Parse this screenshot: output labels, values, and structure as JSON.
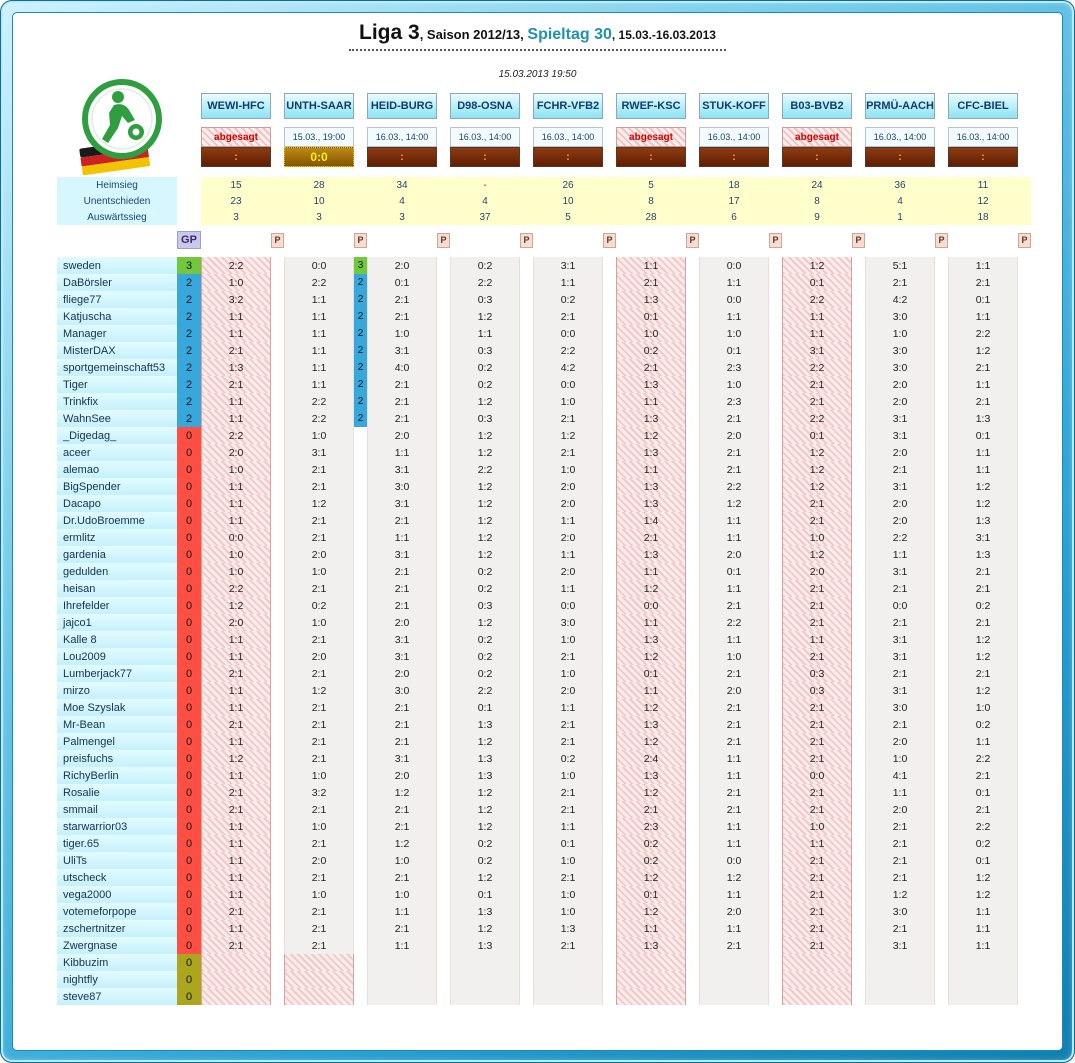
{
  "palette": {
    "accent_teal": "#2191b4",
    "cancelled_red": "#cc0000",
    "points3_green": "#72c83c",
    "points2_blue": "#38a8dc",
    "zero_red": "#ff4f42",
    "inactive_olive": "#aca51e",
    "result_pending_bg": "#7a2a08",
    "result_final_bg": "#9a6a08",
    "stats_yellow": "#ffffcc"
  },
  "header": {
    "title_league": "Liga 3",
    "title_season": ", Saison 2012/13, ",
    "title_matchday": "Spieltag 30",
    "title_dates": ", 15.03.-16.03.2013",
    "timestamp": "15.03.2013 19:50"
  },
  "labels": {
    "home_win": "Heimsieg",
    "draw": "Unentschieden",
    "away_win": "Auswärtssieg",
    "gp": "GP",
    "p": "P",
    "cancelled": "abgesagt",
    "result_pending": ":"
  },
  "matches": [
    {
      "name": "WEWI-HFC",
      "schedule": "abgesagt",
      "cancelled": true,
      "finished": false,
      "result": ":",
      "home_win": "15",
      "draw": "23",
      "away_win": "3"
    },
    {
      "name": "UNTH-SAAR",
      "schedule": "15.03., 19:00",
      "cancelled": false,
      "finished": true,
      "result": "0:0",
      "home_win": "28",
      "draw": "10",
      "away_win": "3"
    },
    {
      "name": "HEID-BURG",
      "schedule": "16.03., 14:00",
      "cancelled": false,
      "finished": false,
      "result": ":",
      "home_win": "34",
      "draw": "4",
      "away_win": "3"
    },
    {
      "name": "D98-OSNA",
      "schedule": "16.03., 14:00",
      "cancelled": false,
      "finished": false,
      "result": ":",
      "home_win": "-",
      "draw": "4",
      "away_win": "37"
    },
    {
      "name": "FCHR-VFB2",
      "schedule": "16.03., 14:00",
      "cancelled": false,
      "finished": false,
      "result": ":",
      "home_win": "26",
      "draw": "10",
      "away_win": "5"
    },
    {
      "name": "RWEF-KSC",
      "schedule": "abgesagt",
      "cancelled": true,
      "finished": false,
      "result": ":",
      "home_win": "5",
      "draw": "8",
      "away_win": "28"
    },
    {
      "name": "STUK-KOFF",
      "schedule": "16.03., 14:00",
      "cancelled": false,
      "finished": false,
      "result": ":",
      "home_win": "18",
      "draw": "17",
      "away_win": "6"
    },
    {
      "name": "B03-BVB2",
      "schedule": "abgesagt",
      "cancelled": true,
      "finished": false,
      "result": ":",
      "home_win": "24",
      "draw": "8",
      "away_win": "9"
    },
    {
      "name": "PRMÜ-AACH",
      "schedule": "16.03., 14:00",
      "cancelled": false,
      "finished": false,
      "result": ":",
      "home_win": "36",
      "draw": "4",
      "away_win": "1"
    },
    {
      "name": "CFC-BIEL",
      "schedule": "16.03., 14:00",
      "cancelled": false,
      "finished": false,
      "result": ":",
      "home_win": "11",
      "draw": "12",
      "away_win": "18"
    }
  ],
  "players": [
    {
      "name": "sweden",
      "gp": "3",
      "tips": [
        "2:2",
        "0:0",
        "2:0",
        "0:2",
        "3:1",
        "1:1",
        "0:0",
        "1:2",
        "5:1",
        "1:1"
      ],
      "points": {
        "1": "3"
      }
    },
    {
      "name": "DaBörsler",
      "gp": "2",
      "tips": [
        "1:0",
        "2:2",
        "0:1",
        "2:2",
        "1:1",
        "2:1",
        "1:1",
        "0:1",
        "2:1",
        "2:1"
      ],
      "points": {
        "1": "2"
      }
    },
    {
      "name": "fliege77",
      "gp": "2",
      "tips": [
        "3:2",
        "1:1",
        "2:1",
        "0:3",
        "0:2",
        "1:3",
        "0:0",
        "2:2",
        "4:2",
        "0:1"
      ],
      "points": {
        "1": "2"
      }
    },
    {
      "name": "Katjuscha",
      "gp": "2",
      "tips": [
        "1:1",
        "1:1",
        "2:1",
        "1:2",
        "2:1",
        "0:1",
        "1:1",
        "1:1",
        "3:0",
        "1:1"
      ],
      "points": {
        "1": "2"
      }
    },
    {
      "name": "Manager",
      "gp": "2",
      "tips": [
        "1:1",
        "1:1",
        "1:0",
        "1:1",
        "0:0",
        "1:0",
        "1:0",
        "1:1",
        "1:0",
        "2:2"
      ],
      "points": {
        "1": "2"
      }
    },
    {
      "name": "MisterDAX",
      "gp": "2",
      "tips": [
        "2:1",
        "1:1",
        "3:1",
        "0:3",
        "2:2",
        "0:2",
        "0:1",
        "3:1",
        "3:0",
        "1:2"
      ],
      "points": {
        "1": "2"
      }
    },
    {
      "name": "sportgemeinschaft53",
      "gp": "2",
      "tips": [
        "1:3",
        "1:1",
        "4:0",
        "0:2",
        "4:2",
        "2:1",
        "2:3",
        "2:2",
        "3:0",
        "2:1"
      ],
      "points": {
        "1": "2"
      }
    },
    {
      "name": "Tiger",
      "gp": "2",
      "tips": [
        "2:1",
        "1:1",
        "2:1",
        "0:2",
        "0:0",
        "1:3",
        "1:0",
        "2:1",
        "2:0",
        "1:1"
      ],
      "points": {
        "1": "2"
      }
    },
    {
      "name": "Trinkfix",
      "gp": "2",
      "tips": [
        "1:1",
        "2:2",
        "2:1",
        "1:2",
        "1:0",
        "1:1",
        "2:3",
        "2:1",
        "2:0",
        "2:1"
      ],
      "points": {
        "1": "2"
      }
    },
    {
      "name": "WahnSee",
      "gp": "2",
      "tips": [
        "1:1",
        "2:2",
        "2:1",
        "0:3",
        "2:1",
        "1:3",
        "2:1",
        "2:2",
        "3:1",
        "1:3"
      ],
      "points": {
        "1": "2"
      }
    },
    {
      "name": "_Digedag_",
      "gp": "0",
      "tips": [
        "2:2",
        "1:0",
        "2:0",
        "1:2",
        "1:2",
        "1:2",
        "2:0",
        "0:1",
        "3:1",
        "0:1"
      ],
      "points": {}
    },
    {
      "name": "aceer",
      "gp": "0",
      "tips": [
        "2:0",
        "3:1",
        "1:1",
        "1:2",
        "2:1",
        "1:3",
        "2:1",
        "1:2",
        "2:0",
        "1:1"
      ],
      "points": {}
    },
    {
      "name": "alemao",
      "gp": "0",
      "tips": [
        "1:0",
        "2:1",
        "3:1",
        "2:2",
        "1:0",
        "1:1",
        "2:1",
        "1:2",
        "2:1",
        "1:1"
      ],
      "points": {}
    },
    {
      "name": "BigSpender",
      "gp": "0",
      "tips": [
        "1:1",
        "2:1",
        "3:0",
        "1:2",
        "2:0",
        "1:3",
        "2:2",
        "1:2",
        "3:1",
        "1:2"
      ],
      "points": {}
    },
    {
      "name": "Dacapo",
      "gp": "0",
      "tips": [
        "1:1",
        "1:2",
        "3:1",
        "1:2",
        "2:0",
        "1:3",
        "1:2",
        "2:1",
        "2:0",
        "1:2"
      ],
      "points": {}
    },
    {
      "name": "Dr.UdoBroemme",
      "gp": "0",
      "tips": [
        "1:1",
        "2:1",
        "2:1",
        "1:2",
        "1:1",
        "1:4",
        "1:1",
        "2:1",
        "2:0",
        "1:3"
      ],
      "points": {}
    },
    {
      "name": "ermlitz",
      "gp": "0",
      "tips": [
        "0:0",
        "2:1",
        "1:1",
        "1:2",
        "2:0",
        "2:1",
        "1:1",
        "1:0",
        "2:2",
        "3:1"
      ],
      "points": {}
    },
    {
      "name": "gardenia",
      "gp": "0",
      "tips": [
        "1:0",
        "2:0",
        "3:1",
        "1:2",
        "1:1",
        "1:3",
        "2:0",
        "1:2",
        "1:1",
        "1:3"
      ],
      "points": {}
    },
    {
      "name": "gedulden",
      "gp": "0",
      "tips": [
        "1:0",
        "1:0",
        "2:1",
        "0:2",
        "2:0",
        "1:1",
        "0:1",
        "2:0",
        "3:1",
        "2:1"
      ],
      "points": {}
    },
    {
      "name": "heisan",
      "gp": "0",
      "tips": [
        "2:2",
        "2:1",
        "2:1",
        "0:2",
        "1:1",
        "1:2",
        "1:1",
        "2:1",
        "2:1",
        "2:1"
      ],
      "points": {}
    },
    {
      "name": "Ihrefelder",
      "gp": "0",
      "tips": [
        "1:2",
        "0:2",
        "2:1",
        "0:3",
        "0:0",
        "0:0",
        "2:1",
        "2:1",
        "0:0",
        "0:2"
      ],
      "points": {}
    },
    {
      "name": "jajco1",
      "gp": "0",
      "tips": [
        "2:0",
        "1:0",
        "2:0",
        "1:2",
        "3:0",
        "1:1",
        "2:2",
        "2:1",
        "2:1",
        "2:1"
      ],
      "points": {}
    },
    {
      "name": "Kalle 8",
      "gp": "0",
      "tips": [
        "1:1",
        "2:1",
        "3:1",
        "0:2",
        "1:0",
        "1:3",
        "1:1",
        "1:1",
        "3:1",
        "1:2"
      ],
      "points": {}
    },
    {
      "name": "Lou2009",
      "gp": "0",
      "tips": [
        "1:1",
        "2:0",
        "3:1",
        "0:2",
        "2:1",
        "1:2",
        "1:0",
        "2:1",
        "3:1",
        "1:2"
      ],
      "points": {}
    },
    {
      "name": "Lumberjack77",
      "gp": "0",
      "tips": [
        "2:1",
        "2:1",
        "2:0",
        "0:2",
        "1:0",
        "0:1",
        "2:1",
        "0:3",
        "2:1",
        "2:1"
      ],
      "points": {}
    },
    {
      "name": "mirzo",
      "gp": "0",
      "tips": [
        "1:1",
        "1:2",
        "3:0",
        "2:2",
        "2:0",
        "1:1",
        "2:0",
        "0:3",
        "3:1",
        "1:2"
      ],
      "points": {}
    },
    {
      "name": "Moe Szyslak",
      "gp": "0",
      "tips": [
        "1:1",
        "2:1",
        "2:1",
        "0:1",
        "1:1",
        "1:2",
        "2:1",
        "2:1",
        "3:0",
        "1:0"
      ],
      "points": {}
    },
    {
      "name": "Mr-Bean",
      "gp": "0",
      "tips": [
        "2:1",
        "2:1",
        "2:1",
        "1:3",
        "2:1",
        "1:3",
        "2:1",
        "2:1",
        "2:1",
        "0:2"
      ],
      "points": {}
    },
    {
      "name": "Palmengel",
      "gp": "0",
      "tips": [
        "1:1",
        "2:1",
        "2:1",
        "1:2",
        "2:1",
        "1:2",
        "2:1",
        "2:1",
        "2:0",
        "1:1"
      ],
      "points": {}
    },
    {
      "name": "preisfuchs",
      "gp": "0",
      "tips": [
        "1:2",
        "2:1",
        "3:1",
        "1:3",
        "0:2",
        "2:4",
        "1:1",
        "2:1",
        "1:0",
        "2:2"
      ],
      "points": {}
    },
    {
      "name": "RichyBerlin",
      "gp": "0",
      "tips": [
        "1:1",
        "1:0",
        "2:0",
        "1:3",
        "1:0",
        "1:3",
        "1:1",
        "0:0",
        "4:1",
        "2:1"
      ],
      "points": {}
    },
    {
      "name": "Rosalie",
      "gp": "0",
      "tips": [
        "2:1",
        "3:2",
        "1:2",
        "1:2",
        "2:1",
        "1:2",
        "2:1",
        "2:1",
        "1:1",
        "0:1"
      ],
      "points": {}
    },
    {
      "name": "smmail",
      "gp": "0",
      "tips": [
        "2:1",
        "2:1",
        "2:1",
        "1:2",
        "2:1",
        "2:1",
        "2:1",
        "2:1",
        "2:0",
        "2:1"
      ],
      "points": {}
    },
    {
      "name": "starwarrior03",
      "gp": "0",
      "tips": [
        "1:1",
        "1:0",
        "2:1",
        "1:2",
        "1:1",
        "2:3",
        "1:1",
        "1:0",
        "2:1",
        "2:2"
      ],
      "points": {}
    },
    {
      "name": "tiger.65",
      "gp": "0",
      "tips": [
        "1:1",
        "2:1",
        "1:2",
        "0:2",
        "0:1",
        "0:2",
        "1:1",
        "1:1",
        "2:1",
        "0:2"
      ],
      "points": {}
    },
    {
      "name": "UliTs",
      "gp": "0",
      "tips": [
        "1:1",
        "2:0",
        "1:0",
        "0:2",
        "1:0",
        "0:2",
        "0:0",
        "2:1",
        "2:1",
        "0:1"
      ],
      "points": {}
    },
    {
      "name": "utscheck",
      "gp": "0",
      "tips": [
        "1:1",
        "2:1",
        "2:1",
        "1:2",
        "2:1",
        "1:2",
        "1:2",
        "2:1",
        "2:1",
        "1:2"
      ],
      "points": {}
    },
    {
      "name": "vega2000",
      "gp": "0",
      "tips": [
        "1:1",
        "1:0",
        "1:0",
        "0:1",
        "1:0",
        "0:1",
        "1:1",
        "2:1",
        "1:2",
        "1:2"
      ],
      "points": {}
    },
    {
      "name": "votemeforpope",
      "gp": "0",
      "tips": [
        "2:1",
        "2:1",
        "1:1",
        "1:3",
        "1:0",
        "1:2",
        "2:0",
        "2:1",
        "3:0",
        "1:1"
      ],
      "points": {}
    },
    {
      "name": "zschertnitzer",
      "gp": "0",
      "tips": [
        "1:1",
        "2:1",
        "2:1",
        "1:2",
        "1:3",
        "1:1",
        "1:1",
        "2:1",
        "2:1",
        "1:1"
      ],
      "points": {}
    },
    {
      "name": "Zwergnase",
      "gp": "0",
      "tips": [
        "2:1",
        "2:1",
        "1:1",
        "1:3",
        "2:1",
        "1:3",
        "2:1",
        "2:1",
        "3:1",
        "1:1"
      ],
      "points": {}
    },
    {
      "name": "Kibbuzim",
      "gp": "0",
      "inactive": true,
      "tips": [
        "",
        "",
        "",
        "",
        "",
        "",
        "",
        "",
        "",
        ""
      ],
      "points": {}
    },
    {
      "name": "nightfly",
      "gp": "0",
      "inactive": true,
      "tips": [
        "",
        "",
        "",
        "",
        "",
        "",
        "",
        "",
        "",
        ""
      ],
      "points": {}
    },
    {
      "name": "steve87",
      "gp": "0",
      "inactive": true,
      "tips": [
        "",
        "",
        "",
        "",
        "",
        "",
        "",
        "",
        "",
        ""
      ],
      "points": {}
    }
  ]
}
